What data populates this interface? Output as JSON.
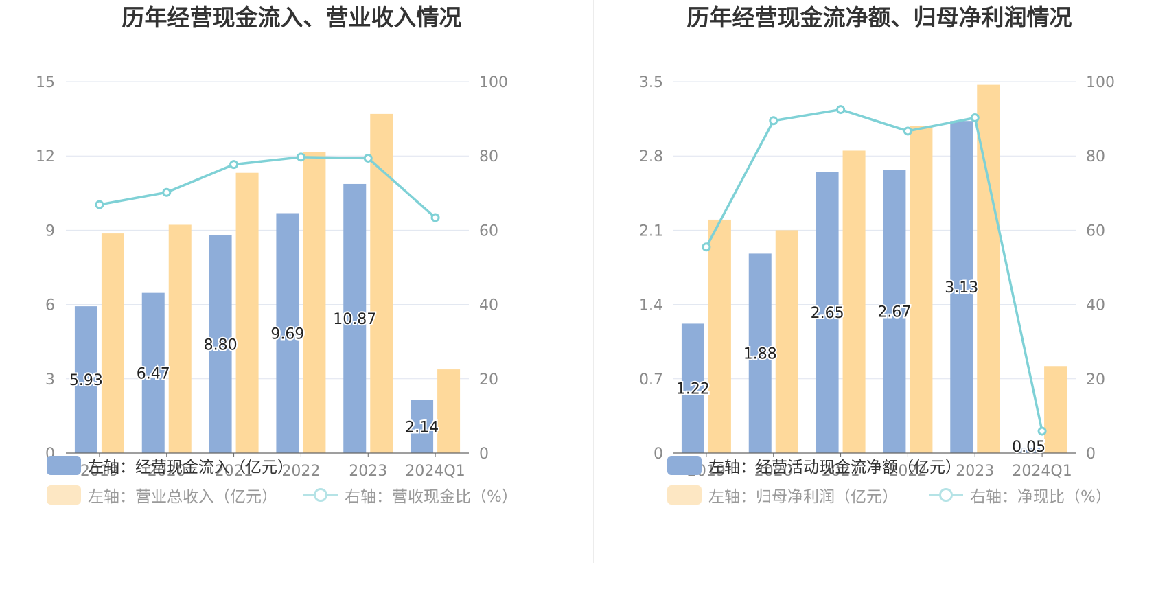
{
  "colors": {
    "primary_bar": "#8eadd9",
    "secondary_bar": "#fed99b",
    "line": "#7fd1d6",
    "grid": "#dfe4ef"
  },
  "chart_data": [
    {
      "type": "bar",
      "title": "历年经营现金流入、营业收入情况",
      "categories": [
        "2019",
        "2020",
        "2021",
        "2022",
        "2023",
        "2024Q1"
      ],
      "left_axis": {
        "min": 0,
        "max": 15,
        "ticks": [
          "0",
          "3",
          "6",
          "9",
          "12",
          "15"
        ]
      },
      "right_axis": {
        "min": 0,
        "max": 100,
        "ticks": [
          "0",
          "20",
          "40",
          "60",
          "80",
          "100"
        ]
      },
      "series": [
        {
          "name": "左轴：经营现金流入（亿元）",
          "axis": "left",
          "kind": "bar",
          "values": [
            5.93,
            6.47,
            8.8,
            9.69,
            10.87,
            2.14
          ],
          "labels": [
            "5.93",
            "6.47",
            "8.80",
            "9.69",
            "10.87",
            "2.14"
          ]
        },
        {
          "name": "左轴：营业总收入（亿元）",
          "axis": "left",
          "kind": "bar",
          "values": [
            8.87,
            9.22,
            11.32,
            12.15,
            13.7,
            3.38
          ]
        },
        {
          "name": "右轴：营收现金比（%）",
          "axis": "right",
          "kind": "line",
          "values": [
            66.9,
            70.2,
            77.7,
            79.7,
            79.4,
            63.4
          ]
        }
      ],
      "grid": true
    },
    {
      "type": "bar",
      "title": "历年经营现金流净额、归母净利润情况",
      "categories": [
        "2019",
        "2020",
        "2021",
        "2022",
        "2023",
        "2024Q1"
      ],
      "left_axis": {
        "min": 0,
        "max": 3.5,
        "ticks": [
          "0",
          "0.7",
          "1.4",
          "2.1",
          "2.8",
          "3.5"
        ]
      },
      "right_axis": {
        "min": 0,
        "max": 100,
        "ticks": [
          "0",
          "20",
          "40",
          "60",
          "80",
          "100"
        ]
      },
      "series": [
        {
          "name": "左轴：经营活动现金流净额（亿元）",
          "axis": "left",
          "kind": "bar",
          "values": [
            1.22,
            1.88,
            2.65,
            2.67,
            3.13,
            0.05
          ],
          "labels": [
            "1.22",
            "1.88",
            "2.65",
            "2.67",
            "3.13",
            "0.05"
          ]
        },
        {
          "name": "左轴：归母净利润（亿元）",
          "axis": "left",
          "kind": "bar",
          "values": [
            2.2,
            2.1,
            2.85,
            3.08,
            3.47,
            0.82
          ]
        },
        {
          "name": "右轴：净现比（%）",
          "axis": "right",
          "kind": "line",
          "values": [
            55.5,
            89.5,
            92.5,
            86.7,
            90.3,
            5.9
          ]
        }
      ],
      "grid": true
    }
  ]
}
